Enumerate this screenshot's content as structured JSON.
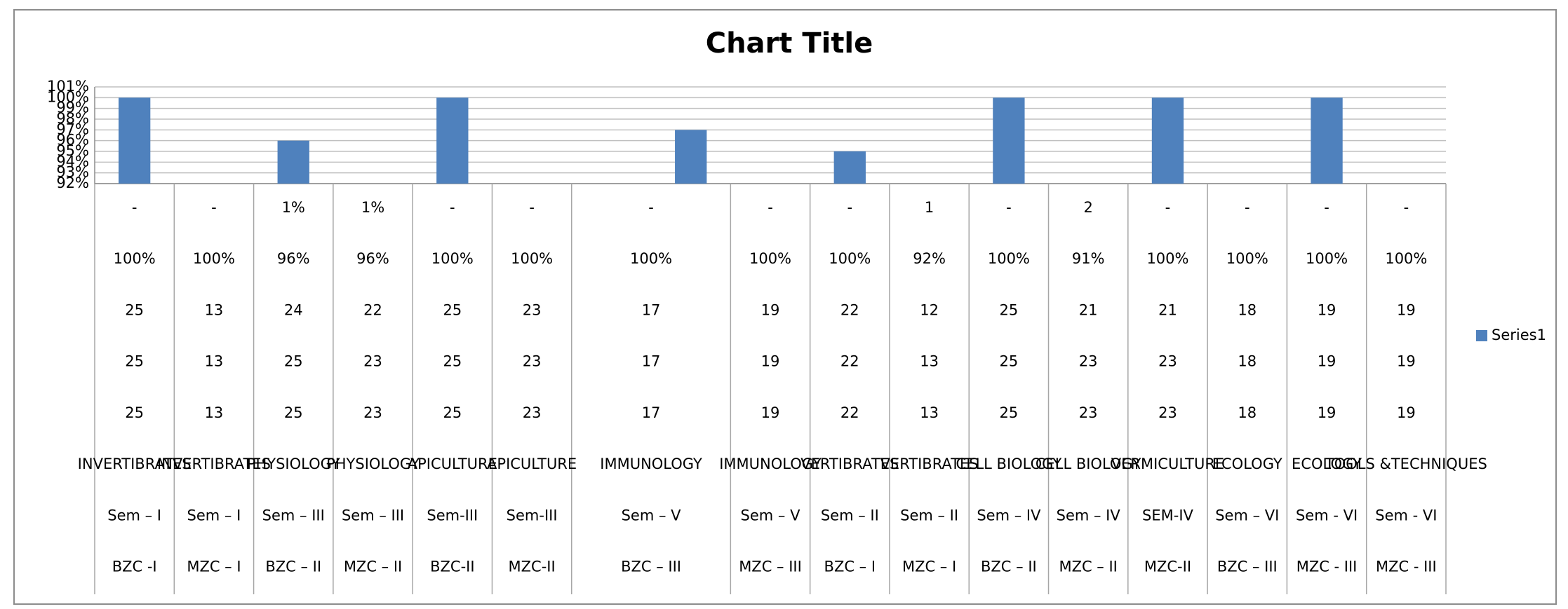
{
  "chart_data": {
    "type": "bar",
    "title": "Chart Title",
    "category_levels": [
      [
        "-",
        "-",
        "1%",
        "1%",
        "-",
        "-",
        "-",
        null,
        "-",
        "-",
        "1",
        "-",
        "2",
        "-",
        "-",
        "-",
        "-"
      ],
      [
        "100%",
        "100%",
        "96%",
        "96%",
        "100%",
        "100%",
        "100%",
        null,
        "100%",
        "100%",
        "92%",
        "100%",
        "91%",
        "100%",
        "100%",
        "100%",
        "100%"
      ],
      [
        "25",
        "13",
        "24",
        "22",
        "25",
        "23",
        "17",
        null,
        "19",
        "22",
        "12",
        "25",
        "21",
        "21",
        "18",
        "19",
        "19"
      ],
      [
        "25",
        "13",
        "25",
        "23",
        "25",
        "23",
        "17",
        null,
        "19",
        "22",
        "13",
        "25",
        "23",
        "23",
        "18",
        "19",
        "19"
      ],
      [
        "25",
        "13",
        "25",
        "23",
        "25",
        "23",
        "17",
        null,
        "19",
        "22",
        "13",
        "25",
        "23",
        "23",
        "18",
        "19",
        "19"
      ],
      [
        "INVERTIBRATES",
        "INVERTIBRATES",
        "PHYSIOLOGY",
        "PHYSIOLOGY",
        "APICULTURE",
        "APICULTURE",
        "IMMUNOLOGY",
        null,
        "IMMUNOLOGY",
        "VERTIBRATES",
        "VERTIBRATES",
        "CELL BIOLOGY",
        "CELL BIOLOGY",
        "VERMICULTURE",
        "ECOLOGY",
        "ECOLOGY",
        "TOOLS &TECHNIQUES"
      ],
      [
        "Sem – I",
        "Sem – I",
        "Sem – III",
        "Sem – III",
        "Sem-III",
        "Sem-III",
        "Sem – V",
        null,
        "Sem – V",
        "Sem – II",
        "Sem – II",
        "Sem – IV",
        "Sem – IV",
        "SEM-IV",
        "Sem – VI",
        "Sem - VI",
        "Sem - VI"
      ],
      [
        "BZC -I",
        "MZC – I",
        "BZC – II",
        "MZC – II",
        "BZC-II",
        "MZC-II",
        "BZC – III",
        null,
        "MZC – III",
        "BZC – I",
        "MZC – I",
        "BZC – II",
        "MZC – II",
        "MZC-II",
        "BZC – III",
        "MZC - III",
        "MZC - III"
      ]
    ],
    "series": [
      {
        "name": "Series1",
        "color": "#4f81bd",
        "values": [
          100,
          null,
          96,
          null,
          100,
          null,
          null,
          97,
          null,
          95,
          null,
          100,
          null,
          100,
          null,
          100,
          null
        ]
      }
    ],
    "ylim": [
      92,
      101
    ],
    "yticks": [
      {
        "value": 92,
        "label": "92%"
      },
      {
        "value": 93,
        "label": "93%"
      },
      {
        "value": 94,
        "label": "94%"
      },
      {
        "value": 95,
        "label": "95%"
      },
      {
        "value": 96,
        "label": "96%"
      },
      {
        "value": 97,
        "label": "97%"
      },
      {
        "value": 98,
        "label": "98%"
      },
      {
        "value": 99,
        "label": "99%"
      },
      {
        "value": 100,
        "label": "100%"
      },
      {
        "value": 101,
        "label": "101%"
      }
    ],
    "grid": true,
    "legend": "right"
  }
}
